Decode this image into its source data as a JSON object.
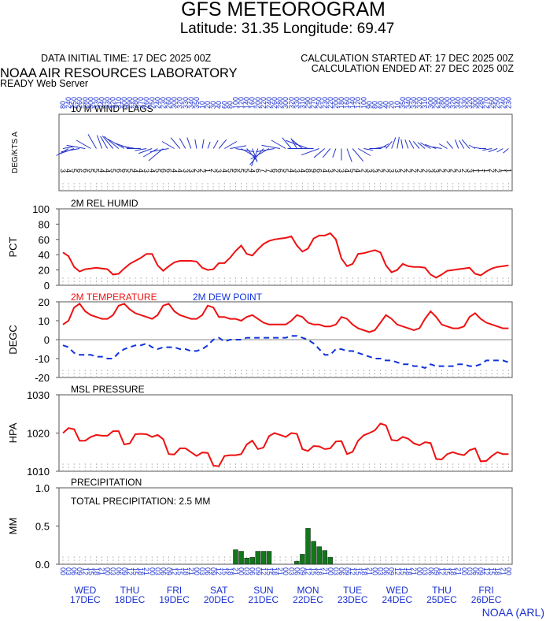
{
  "header": {
    "title": "GFS METEOROGRAM",
    "subtitle": "Latitude: 31.35 Longitude:  69.47",
    "initial_time": "DATA INITIAL TIME: 17 DEC 2025 00Z",
    "calc_started": "CALCULATION STARTED AT: 17 DEC 2025 00Z",
    "calc_ended": "CALCULATION ENDED AT: 27 DEC 2025 00Z",
    "lab": "NOAA AIR RESOURCES LABORATORY",
    "server": "READY Web Server",
    "footer": "NOAA (ARL)"
  },
  "chart_data": [
    {
      "type": "wind",
      "title": "10 M  WIND FLAGS",
      "ylabel": "DEG/KTS  A",
      "color": "#2233cc",
      "direction": [
        80,
        240,
        250,
        260,
        280,
        300,
        330,
        340,
        330,
        320,
        310,
        300,
        290,
        280,
        270,
        260,
        250,
        240,
        230,
        260,
        300,
        320,
        330,
        340,
        350,
        10,
        20,
        30,
        40,
        60,
        80,
        100,
        120,
        140,
        160,
        200,
        220,
        240,
        260,
        280,
        300,
        320,
        330,
        310,
        290,
        270,
        250,
        230,
        220,
        200,
        180,
        160,
        140,
        120,
        100,
        90,
        80,
        60,
        40,
        20,
        10,
        350,
        340,
        330,
        320,
        310,
        300,
        290,
        280,
        300,
        320,
        340,
        330,
        320,
        300,
        280,
        270,
        260,
        250,
        240,
        230
      ],
      "speed": [
        3,
        4,
        5,
        6,
        6,
        5,
        5,
        4,
        4,
        5,
        6,
        6,
        5,
        4,
        4,
        3,
        4,
        5,
        6,
        6,
        4,
        4,
        3,
        3,
        2,
        2,
        1,
        2,
        3,
        4,
        5,
        6,
        5,
        5,
        4,
        6,
        7,
        7,
        6,
        6,
        5,
        4,
        3,
        4,
        8,
        9,
        6,
        4,
        3,
        2,
        3,
        4,
        5,
        4,
        2,
        3,
        3,
        2,
        2,
        3,
        3,
        2,
        2,
        2,
        2,
        2,
        3,
        3,
        2,
        2,
        2,
        2,
        2,
        3,
        1,
        1,
        1,
        2,
        2,
        1,
        1
      ]
    },
    {
      "type": "line",
      "title": "2M REL HUMID",
      "ylabel": "PCT",
      "color": "#ee1111",
      "ylim": [
        0,
        100
      ],
      "yticks": [
        0,
        20,
        40,
        60,
        80,
        100
      ],
      "values": [
        43,
        38,
        24,
        18,
        21,
        22,
        23,
        22,
        21,
        14,
        15,
        22,
        28,
        32,
        36,
        41,
        41,
        26,
        19,
        25,
        30,
        32,
        32,
        32,
        31,
        23,
        20,
        21,
        29,
        29,
        36,
        45,
        52,
        41,
        39,
        47,
        54,
        58,
        60,
        61,
        62,
        64,
        52,
        44,
        48,
        61,
        65,
        65,
        68,
        60,
        35,
        25,
        28,
        41,
        42,
        44,
        46,
        43,
        26,
        17,
        20,
        28,
        25,
        24,
        24,
        23,
        14,
        10,
        14,
        19,
        20,
        21,
        22,
        23,
        15,
        13,
        18,
        22,
        24,
        25,
        26
      ]
    },
    {
      "type": "line",
      "ylabel": "DEGC",
      "ylim": [
        -20,
        20
      ],
      "yticks": [
        -20,
        -10,
        0,
        10,
        20
      ],
      "zero_line": true,
      "series": [
        {
          "name": "2M TEMPERATURE",
          "color": "#ee1111",
          "dashed": false,
          "values": [
            8,
            10,
            17,
            19,
            15,
            13,
            12,
            11,
            11,
            13,
            18,
            19,
            16,
            14,
            13,
            12,
            11,
            13,
            18,
            19,
            15,
            13,
            12,
            11,
            11,
            13,
            18,
            17,
            12,
            12,
            11,
            11,
            10,
            12,
            13,
            11,
            9,
            8,
            8,
            8,
            8,
            10,
            13,
            12,
            9,
            8,
            8,
            7,
            7,
            8,
            12,
            11,
            8,
            6,
            5,
            4,
            5,
            9,
            13,
            11,
            8,
            7,
            6,
            5,
            6,
            11,
            15,
            12,
            8,
            7,
            6,
            6,
            7,
            12,
            14,
            11,
            9,
            8,
            7,
            6,
            6
          ]
        },
        {
          "name": "2M  DEW POINT",
          "color": "#1133dd",
          "dashed": true,
          "values": [
            -3,
            -4,
            -7,
            -8,
            -8,
            -8,
            -9,
            -9,
            -10,
            -10,
            -7,
            -5,
            -4,
            -3,
            -3,
            -2,
            -4,
            -5,
            -4,
            -4,
            -4,
            -5,
            -5,
            -6,
            -6,
            -5,
            -3,
            0,
            1,
            -1,
            0,
            0,
            0,
            1,
            1,
            1,
            1,
            1,
            1,
            1,
            1,
            2,
            2,
            1,
            0,
            -2,
            -5,
            -8,
            -8,
            -5,
            -5,
            -6,
            -6,
            -7,
            -8,
            -9,
            -10,
            -10,
            -11,
            -11,
            -12,
            -13,
            -13,
            -14,
            -14,
            -15,
            -13,
            -14,
            -14,
            -14,
            -14,
            -13,
            -13,
            -14,
            -14,
            -13,
            -11,
            -11,
            -11,
            -11,
            -12
          ]
        }
      ]
    },
    {
      "type": "line",
      "title": "MSL PRESSURE",
      "ylabel": "HPA",
      "color": "#ee1111",
      "ylim": [
        1010,
        1030
      ],
      "yticks": [
        1010,
        1020,
        1030
      ],
      "values": [
        1020,
        1021.3,
        1021,
        1018,
        1018,
        1019,
        1019.5,
        1019.3,
        1019.3,
        1020.5,
        1020.5,
        1017,
        1017.3,
        1019.7,
        1019.8,
        1019.7,
        1019,
        1019.5,
        1018.4,
        1014.5,
        1014.4,
        1016,
        1016,
        1015,
        1014,
        1014.9,
        1014.8,
        1011.5,
        1011.3,
        1014,
        1014.2,
        1014.2,
        1014.5,
        1017,
        1018,
        1015.8,
        1016.2,
        1019.2,
        1020,
        1019.5,
        1019,
        1020,
        1019.8,
        1015.8,
        1015.3,
        1016.6,
        1016.5,
        1015.8,
        1016,
        1017.8,
        1017.9,
        1014.5,
        1015.1,
        1018,
        1019.4,
        1020,
        1020.7,
        1022.5,
        1022,
        1018.2,
        1018,
        1019,
        1018.5,
        1017.3,
        1016.8,
        1017.6,
        1017.4,
        1013.2,
        1013.1,
        1014.5,
        1015,
        1014.5,
        1014.2,
        1015.5,
        1016,
        1012.6,
        1012.7,
        1014,
        1015,
        1014.5,
        1014.5
      ]
    },
    {
      "type": "bar",
      "title": "PRECIPITATION",
      "annotation": "TOTAL PRECIPITATION:   2.5 MM",
      "ylabel": "MM",
      "color": "#11771a",
      "ylim": [
        0,
        1
      ],
      "yticks": [
        {
          "value": 0,
          "label": "0.0"
        },
        {
          "value": 0.5,
          "label": "0.5"
        },
        {
          "value": 1,
          "label": "1.0"
        }
      ],
      "values": [
        0,
        0,
        0,
        0,
        0,
        0,
        0,
        0,
        0,
        0,
        0,
        0,
        0,
        0,
        0,
        0,
        0,
        0,
        0,
        0,
        0,
        0,
        0,
        0,
        0,
        0,
        0,
        0,
        0,
        0,
        0,
        0.19,
        0.17,
        0.08,
        0.09,
        0.17,
        0.17,
        0.17,
        0,
        0,
        0,
        0,
        0.04,
        0.13,
        0.47,
        0.3,
        0.23,
        0.18,
        0.09,
        0,
        0,
        0,
        0,
        0,
        0,
        0,
        0,
        0,
        0,
        0,
        0,
        0,
        0,
        0,
        0,
        0,
        0,
        0,
        0,
        0,
        0,
        0,
        0,
        0,
        0,
        0,
        0,
        0,
        0,
        0,
        0
      ],
      "x": [
        "00",
        "03",
        "06",
        "09",
        "12",
        "15",
        "18",
        "21",
        "00",
        "03",
        "06",
        "09",
        "12",
        "15",
        "18",
        "21",
        "00",
        "03",
        "06",
        "09",
        "12",
        "15",
        "18",
        "21",
        "00",
        "03",
        "06",
        "09",
        "12",
        "15",
        "18",
        "21",
        "00",
        "03",
        "06",
        "09",
        "12",
        "15",
        "18",
        "21",
        "00",
        "03",
        "06",
        "09",
        "12",
        "15",
        "18",
        "21",
        "00",
        "03",
        "06",
        "09",
        "12",
        "15",
        "18",
        "21",
        "00",
        "03",
        "06",
        "09",
        "12",
        "15",
        "18",
        "21",
        "00",
        "03",
        "06",
        "09",
        "12",
        "15",
        "18",
        "21",
        "00",
        "03",
        "06",
        "09",
        "12",
        "15",
        "18",
        "21",
        "00"
      ],
      "days": [
        {
          "day": "WED",
          "date": "17DEC"
        },
        {
          "day": "THU",
          "date": "18DEC"
        },
        {
          "day": "FRI",
          "date": "19DEC"
        },
        {
          "day": "SAT",
          "date": "20DEC"
        },
        {
          "day": "SUN",
          "date": "21DEC"
        },
        {
          "day": "MON",
          "date": "22DEC"
        },
        {
          "day": "TUE",
          "date": "23DEC"
        },
        {
          "day": "WED",
          "date": "24DEC"
        },
        {
          "day": "THU",
          "date": "25DEC"
        },
        {
          "day": "FRI",
          "date": "26DEC"
        }
      ]
    }
  ]
}
